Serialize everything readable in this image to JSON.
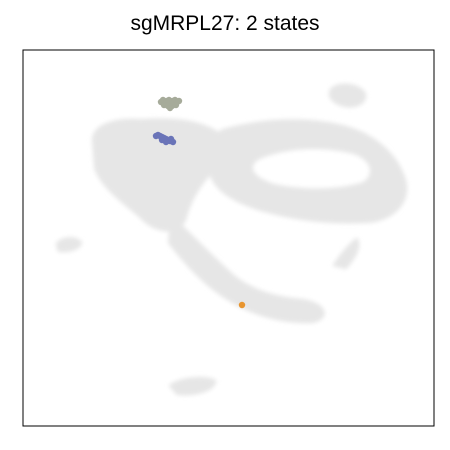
{
  "chart_data": {
    "type": "scatter",
    "title": "sgMRPL27: 2 states",
    "xlabel": "",
    "ylabel": "",
    "grid": false,
    "legend": "none",
    "background_color": "#e6e6e6",
    "series": [
      {
        "color": "#a6ab9a",
        "points": [
          [
            138,
            52
          ],
          [
            140,
            50
          ],
          [
            142,
            53
          ],
          [
            144,
            51
          ],
          [
            146,
            50
          ],
          [
            148,
            53
          ],
          [
            150,
            51
          ],
          [
            152,
            50
          ],
          [
            154,
            52
          ],
          [
            156,
            51
          ],
          [
            141,
            55
          ],
          [
            145,
            56
          ],
          [
            149,
            56
          ],
          [
            153,
            55
          ],
          [
            147,
            58
          ]
        ]
      },
      {
        "color": "#6a74b8",
        "points": [
          [
            133,
            86
          ],
          [
            135,
            85
          ],
          [
            137,
            86
          ],
          [
            139,
            87
          ],
          [
            141,
            88
          ],
          [
            143,
            89
          ],
          [
            145,
            90
          ],
          [
            147,
            91
          ],
          [
            150,
            92
          ],
          [
            139,
            90
          ],
          [
            143,
            92
          ],
          [
            148,
            89
          ]
        ]
      },
      {
        "color": "#e8952f",
        "points": [
          [
            219,
            255
          ]
        ]
      }
    ]
  }
}
